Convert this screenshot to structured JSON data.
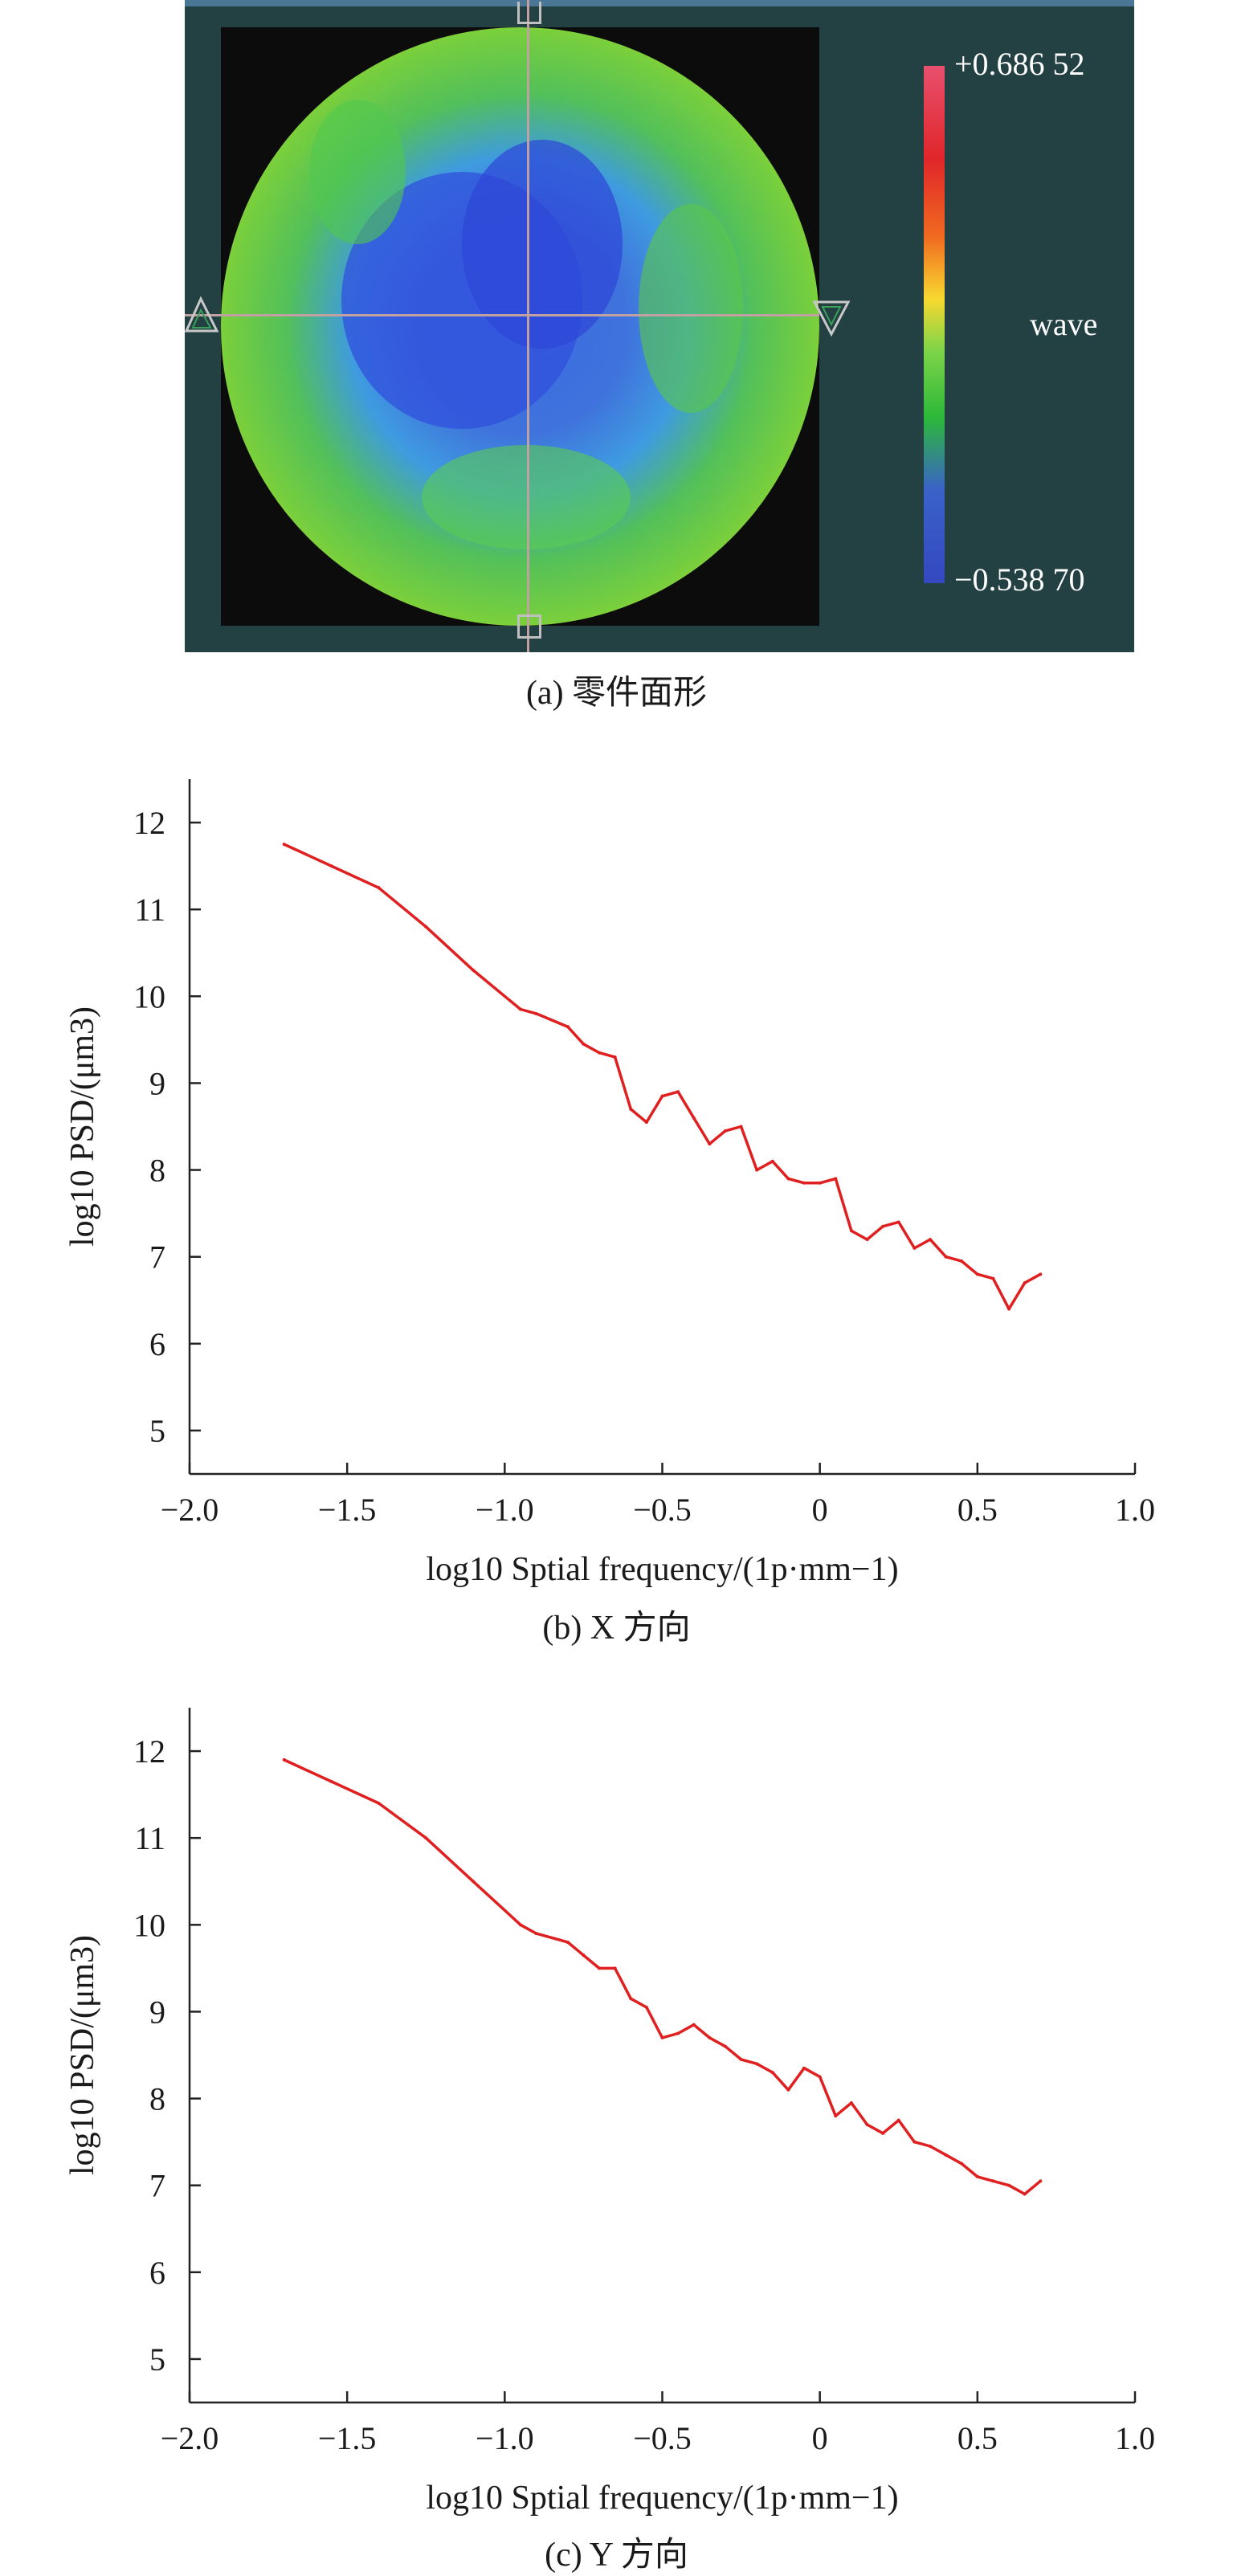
{
  "panel_a": {
    "colorbar_max": "+0.686 52",
    "colorbar_unit": "wave",
    "colorbar_min": "−0.538 70",
    "caption": "(a) 零件面形"
  },
  "captions": {
    "b": "(b) X 方向",
    "c": "(c) Y 方向"
  },
  "chart_data": [
    {
      "type": "line",
      "xlabel": "log10 Sptial frequency/(1p·mm−1)",
      "ylabel": "log10 PSD/(μm3)",
      "xlim": [
        -2.0,
        1.0
      ],
      "ylim": [
        4.5,
        12.5
      ],
      "xticks": [
        "−2.0",
        "−1.5",
        "−1.0",
        "−0.5",
        "0",
        "0.5",
        "1.0"
      ],
      "yticks": [
        "5",
        "6",
        "7",
        "8",
        "9",
        "10",
        "11",
        "12"
      ],
      "color": "#e02020",
      "series": [
        {
          "x": [
            -1.7,
            -1.55,
            -1.4,
            -1.25,
            -1.1,
            -0.95,
            -0.9,
            -0.8,
            -0.75,
            -0.7,
            -0.65,
            -0.6,
            -0.55,
            -0.5,
            -0.45,
            -0.4,
            -0.35,
            -0.3,
            -0.25,
            -0.2,
            -0.15,
            -0.1,
            -0.05,
            0.0,
            0.05,
            0.1,
            0.15,
            0.2,
            0.25,
            0.3,
            0.35,
            0.4,
            0.45,
            0.5,
            0.55,
            0.6,
            0.65,
            0.7
          ],
          "y": [
            11.75,
            11.5,
            11.25,
            10.8,
            10.3,
            9.85,
            9.8,
            9.65,
            9.45,
            9.35,
            9.3,
            8.7,
            8.55,
            8.85,
            8.9,
            8.6,
            8.3,
            8.45,
            8.5,
            8.0,
            8.1,
            7.9,
            7.85,
            7.85,
            7.9,
            7.3,
            7.2,
            7.35,
            7.4,
            7.1,
            7.2,
            7.0,
            6.95,
            6.8,
            6.75,
            6.4,
            6.7,
            6.8
          ]
        }
      ]
    },
    {
      "type": "line",
      "xlabel": "log10 Sptial frequency/(1p·mm−1)",
      "ylabel": "log10 PSD/(μm3)",
      "xlim": [
        -2.0,
        1.0
      ],
      "ylim": [
        4.5,
        12.5
      ],
      "xticks": [
        "−2.0",
        "−1.5",
        "−1.0",
        "−0.5",
        "0",
        "0.5",
        "1.0"
      ],
      "yticks": [
        "5",
        "6",
        "7",
        "8",
        "9",
        "10",
        "11",
        "12"
      ],
      "color": "#e02020",
      "series": [
        {
          "x": [
            -1.7,
            -1.55,
            -1.4,
            -1.25,
            -1.1,
            -0.95,
            -0.9,
            -0.8,
            -0.75,
            -0.7,
            -0.65,
            -0.6,
            -0.55,
            -0.5,
            -0.45,
            -0.4,
            -0.35,
            -0.3,
            -0.25,
            -0.2,
            -0.15,
            -0.1,
            -0.05,
            0.0,
            0.05,
            0.1,
            0.15,
            0.2,
            0.25,
            0.3,
            0.35,
            0.4,
            0.45,
            0.5,
            0.55,
            0.6,
            0.65,
            0.7
          ],
          "y": [
            11.9,
            11.65,
            11.4,
            11.0,
            10.5,
            10.0,
            9.9,
            9.8,
            9.65,
            9.5,
            9.5,
            9.15,
            9.05,
            8.7,
            8.75,
            8.85,
            8.7,
            8.6,
            8.45,
            8.4,
            8.3,
            8.1,
            8.35,
            8.25,
            7.8,
            7.95,
            7.7,
            7.6,
            7.75,
            7.5,
            7.45,
            7.35,
            7.25,
            7.1,
            7.05,
            7.0,
            6.9,
            7.05
          ]
        }
      ]
    }
  ]
}
